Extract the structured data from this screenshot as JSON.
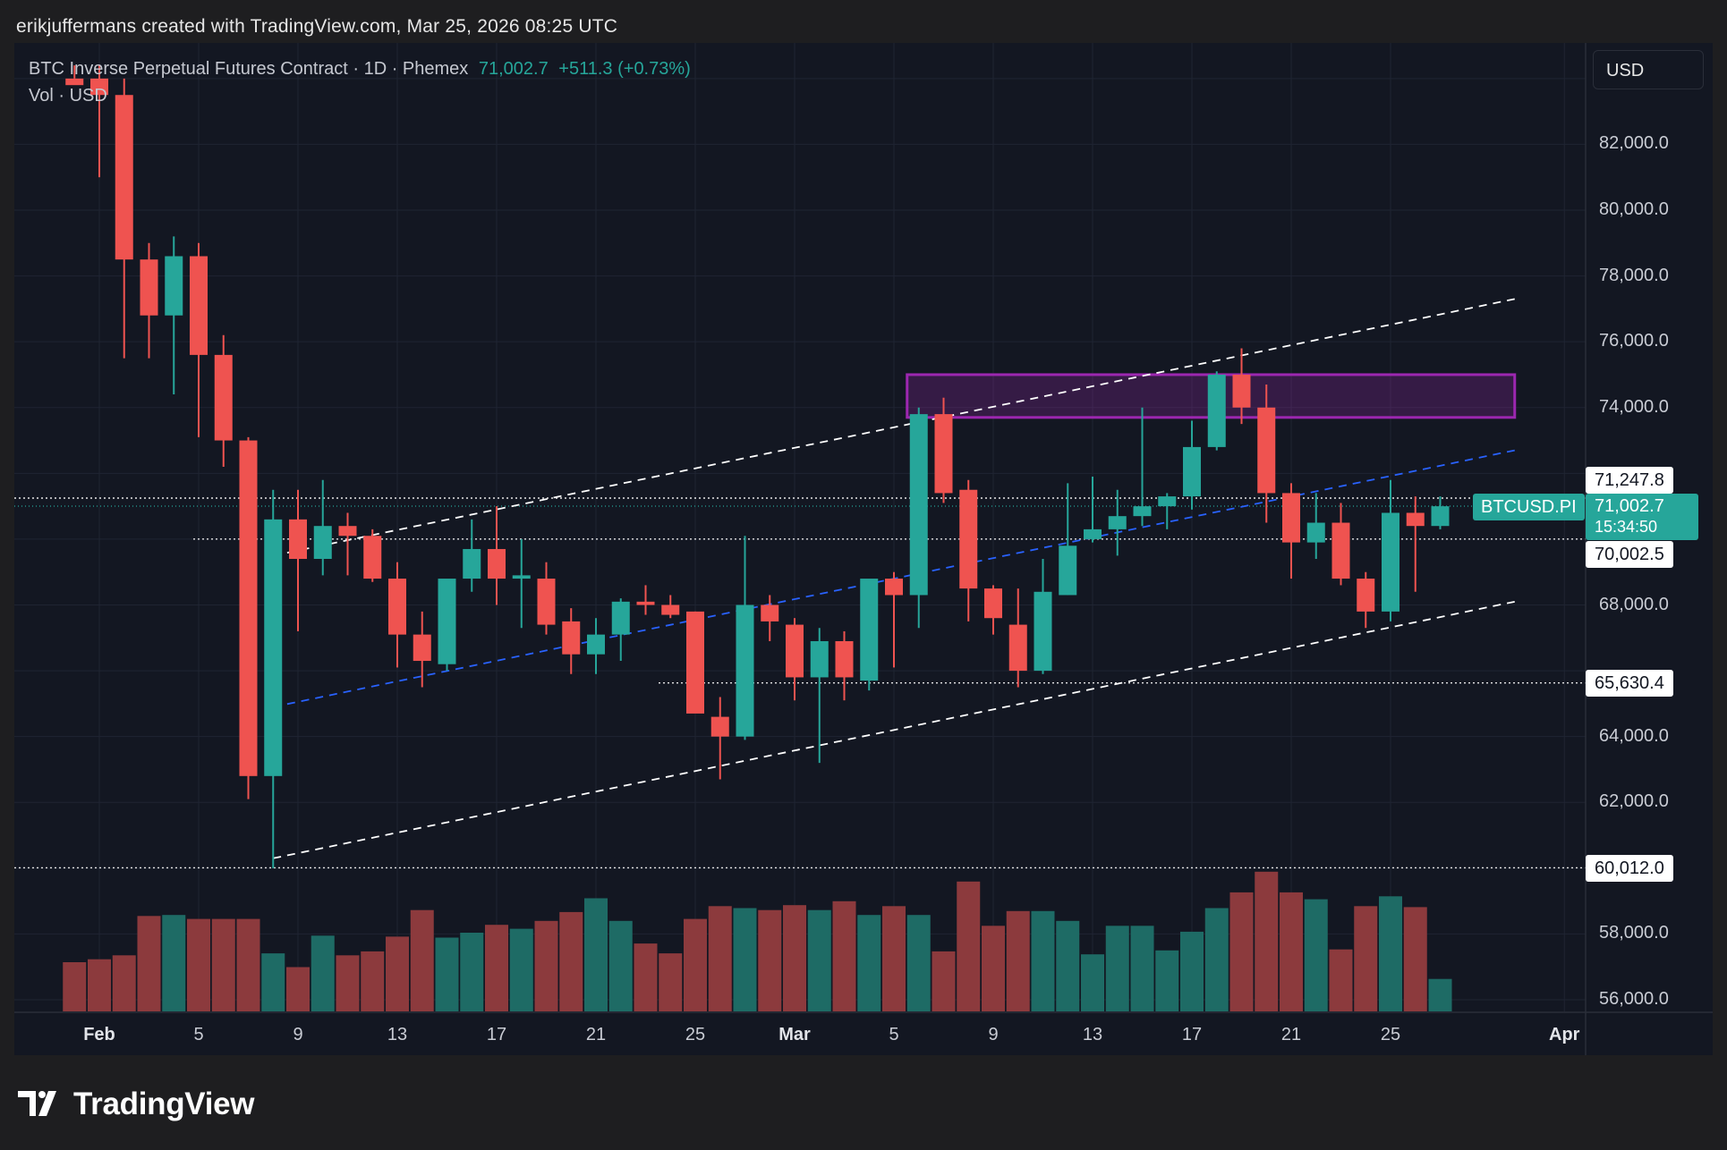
{
  "header": {
    "attribution": "erikjuffermans created with TradingView.com, Mar 25, 2026 08:25 UTC"
  },
  "legend": {
    "title": "BTC Inverse Perpetual Futures Contract · 1D · Phemex",
    "last": "71,002.7",
    "change": "+511.3 (+0.73%)",
    "volume_label": "Vol · USD"
  },
  "currency_button": "USD",
  "symbol_tag": "BTCUSD.PI",
  "last_price_label": "71,002.7",
  "countdown": "15:34:50",
  "price_labels": [
    "71,247.8",
    "70,002.5",
    "65,630.4",
    "60,012.0"
  ],
  "logo": {
    "text": "TradingView"
  },
  "colors": {
    "up": "#26a69a",
    "down": "#ef5350",
    "vol_up": "#1e6b65",
    "vol_down": "#8c3a3d",
    "zone": "#9c27b0",
    "channel": "#ffffff",
    "midline": "#2962ff",
    "background": "#131722"
  },
  "chart_data": {
    "type": "candlestick",
    "title": "BTC Inverse Perpetual Futures Contract · 1D · Phemex",
    "interval": "1D",
    "y_ticks": [
      "82,000.0",
      "80,000.0",
      "78,000.0",
      "76,000.0",
      "74,000.0",
      "68,000.0",
      "64,000.0",
      "62,000.0",
      "58,000.0",
      "56,000.0"
    ],
    "y_range": [
      55700,
      84400
    ],
    "x_ticks": [
      {
        "label": "Feb",
        "date": "2026-02-01",
        "bold": true
      },
      {
        "label": "5",
        "date": "2026-02-05"
      },
      {
        "label": "9",
        "date": "2026-02-09"
      },
      {
        "label": "13",
        "date": "2026-02-13"
      },
      {
        "label": "17",
        "date": "2026-02-17"
      },
      {
        "label": "21",
        "date": "2026-02-21"
      },
      {
        "label": "25",
        "date": "2026-02-25"
      },
      {
        "label": "Mar",
        "date": "2026-03-01",
        "bold": true
      },
      {
        "label": "5",
        "date": "2026-03-05"
      },
      {
        "label": "9",
        "date": "2026-03-09"
      },
      {
        "label": "13",
        "date": "2026-03-13"
      },
      {
        "label": "17",
        "date": "2026-03-17"
      },
      {
        "label": "21",
        "date": "2026-03-21"
      },
      {
        "label": "25",
        "date": "2026-03-25"
      },
      {
        "label": "Apr",
        "date": "2026-04-01",
        "bold": true
      }
    ],
    "candles": [
      {
        "date": "2026-01-31",
        "o": 84000,
        "h": 84400,
        "l": 84000,
        "c": 83800
      },
      {
        "date": "2026-02-01",
        "o": 84000,
        "h": 84400,
        "l": 81000,
        "c": 83500
      },
      {
        "date": "2026-02-02",
        "o": 83500,
        "h": 84000,
        "l": 75500,
        "c": 78500
      },
      {
        "date": "2026-02-03",
        "o": 78500,
        "h": 79000,
        "l": 75500,
        "c": 76800
      },
      {
        "date": "2026-02-04",
        "o": 76800,
        "h": 79200,
        "l": 74400,
        "c": 78600
      },
      {
        "date": "2026-02-05",
        "o": 78600,
        "h": 79000,
        "l": 73100,
        "c": 75600
      },
      {
        "date": "2026-02-06",
        "o": 75600,
        "h": 76200,
        "l": 72200,
        "c": 73000
      },
      {
        "date": "2026-02-07",
        "o": 73000,
        "h": 73100,
        "l": 62100,
        "c": 62800
      },
      {
        "date": "2026-02-08",
        "o": 62800,
        "h": 71500,
        "l": 60000,
        "c": 70600
      },
      {
        "date": "2026-02-09",
        "o": 70600,
        "h": 71500,
        "l": 67200,
        "c": 69400
      },
      {
        "date": "2026-02-10",
        "o": 69400,
        "h": 71800,
        "l": 68900,
        "c": 70400
      },
      {
        "date": "2026-02-11",
        "o": 70400,
        "h": 70800,
        "l": 68900,
        "c": 70100
      },
      {
        "date": "2026-02-12",
        "o": 70100,
        "h": 70300,
        "l": 68700,
        "c": 68800
      },
      {
        "date": "2026-02-13",
        "o": 68800,
        "h": 69300,
        "l": 66100,
        "c": 67100
      },
      {
        "date": "2026-02-14",
        "o": 67100,
        "h": 67800,
        "l": 65500,
        "c": 66300
      },
      {
        "date": "2026-02-15",
        "o": 66200,
        "h": 68700,
        "l": 66000,
        "c": 68800
      },
      {
        "date": "2026-02-16",
        "o": 68800,
        "h": 70600,
        "l": 68400,
        "c": 69700
      },
      {
        "date": "2026-02-17",
        "o": 69700,
        "h": 71000,
        "l": 68000,
        "c": 68800
      },
      {
        "date": "2026-02-18",
        "o": 68800,
        "h": 70000,
        "l": 67300,
        "c": 68900
      },
      {
        "date": "2026-02-19",
        "o": 68800,
        "h": 69300,
        "l": 67100,
        "c": 67400
      },
      {
        "date": "2026-02-20",
        "o": 67500,
        "h": 67900,
        "l": 65900,
        "c": 66500
      },
      {
        "date": "2026-02-21",
        "o": 66500,
        "h": 67600,
        "l": 65900,
        "c": 67100
      },
      {
        "date": "2026-02-22",
        "o": 67100,
        "h": 68200,
        "l": 66300,
        "c": 68100
      },
      {
        "date": "2026-02-23",
        "o": 68100,
        "h": 68600,
        "l": 67700,
        "c": 68000
      },
      {
        "date": "2026-02-24",
        "o": 68000,
        "h": 68300,
        "l": 67600,
        "c": 67700
      },
      {
        "date": "2026-02-25",
        "o": 67800,
        "h": 67800,
        "l": 64800,
        "c": 64700
      },
      {
        "date": "2026-02-26",
        "o": 64600,
        "h": 65200,
        "l": 62700,
        "c": 64000
      },
      {
        "date": "2026-02-27",
        "o": 64000,
        "h": 70100,
        "l": 63900,
        "c": 68000
      },
      {
        "date": "2026-02-28",
        "o": 68000,
        "h": 68300,
        "l": 66900,
        "c": 67500
      },
      {
        "date": "2026-03-01",
        "o": 67400,
        "h": 67600,
        "l": 65100,
        "c": 65800
      },
      {
        "date": "2026-03-02",
        "o": 65800,
        "h": 67300,
        "l": 63200,
        "c": 66900
      },
      {
        "date": "2026-03-03",
        "o": 66900,
        "h": 67200,
        "l": 65100,
        "c": 65800
      },
      {
        "date": "2026-03-04",
        "o": 65700,
        "h": 68700,
        "l": 65400,
        "c": 68800
      },
      {
        "date": "2026-03-05",
        "o": 68800,
        "h": 69000,
        "l": 66100,
        "c": 68300
      },
      {
        "date": "2026-03-06",
        "o": 68300,
        "h": 74000,
        "l": 67300,
        "c": 73800
      },
      {
        "date": "2026-03-07",
        "o": 73800,
        "h": 74300,
        "l": 71100,
        "c": 71400
      },
      {
        "date": "2026-03-08",
        "o": 71500,
        "h": 71800,
        "l": 67500,
        "c": 68500
      },
      {
        "date": "2026-03-09",
        "o": 68500,
        "h": 68600,
        "l": 67100,
        "c": 67600
      },
      {
        "date": "2026-03-10",
        "o": 67400,
        "h": 68500,
        "l": 65500,
        "c": 66000
      },
      {
        "date": "2026-03-11",
        "o": 66000,
        "h": 69400,
        "l": 65900,
        "c": 68400
      },
      {
        "date": "2026-03-12",
        "o": 68300,
        "h": 71700,
        "l": 68300,
        "c": 69800
      },
      {
        "date": "2026-03-13",
        "o": 70000,
        "h": 71900,
        "l": 69900,
        "c": 70300
      },
      {
        "date": "2026-03-14",
        "o": 70300,
        "h": 71500,
        "l": 69500,
        "c": 70700
      },
      {
        "date": "2026-03-15",
        "o": 70700,
        "h": 74000,
        "l": 70400,
        "c": 71000
      },
      {
        "date": "2026-03-16",
        "o": 71000,
        "h": 71400,
        "l": 70300,
        "c": 71300
      },
      {
        "date": "2026-03-17",
        "o": 71300,
        "h": 73600,
        "l": 70900,
        "c": 72800
      },
      {
        "date": "2026-03-18",
        "o": 72800,
        "h": 75100,
        "l": 72700,
        "c": 75000
      },
      {
        "date": "2026-03-19",
        "o": 75000,
        "h": 75800,
        "l": 73500,
        "c": 74000
      },
      {
        "date": "2026-03-20",
        "o": 74000,
        "h": 74700,
        "l": 70500,
        "c": 71400
      },
      {
        "date": "2026-03-21",
        "o": 71400,
        "h": 71700,
        "l": 68800,
        "c": 69900
      },
      {
        "date": "2026-03-22",
        "o": 69900,
        "h": 71400,
        "l": 69400,
        "c": 70500
      },
      {
        "date": "2026-03-23",
        "o": 70500,
        "h": 71100,
        "l": 68600,
        "c": 68800
      },
      {
        "date": "2026-03-24",
        "o": 68800,
        "h": 69000,
        "l": 67300,
        "c": 67800
      },
      {
        "date": "2026-03-25",
        "o": 67800,
        "h": 71800,
        "l": 67500,
        "c": 70800
      },
      {
        "date": "2026-03-26",
        "o": 70800,
        "h": 71300,
        "l": 68400,
        "c": 70400
      },
      {
        "date": "2026-03-27",
        "o": 70400,
        "h": 71300,
        "l": 70300,
        "c": 71000
      }
    ],
    "volume": [
      0.5,
      0.53,
      0.57,
      0.97,
      0.98,
      0.94,
      0.94,
      0.94,
      0.59,
      0.45,
      0.77,
      0.57,
      0.61,
      0.76,
      1.03,
      0.75,
      0.8,
      0.88,
      0.84,
      0.92,
      1.01,
      1.15,
      0.92,
      0.69,
      0.59,
      0.94,
      1.07,
      1.05,
      1.03,
      1.08,
      1.03,
      1.12,
      0.98,
      1.07,
      0.98,
      0.61,
      1.32,
      0.87,
      1.02,
      1.02,
      0.92,
      0.58,
      0.87,
      0.87,
      0.62,
      0.81,
      1.05,
      1.21,
      1.42,
      1.21,
      1.14,
      0.63,
      1.07,
      1.17,
      1.06,
      0.33
    ],
    "horizontal_levels": [
      71247.8,
      70002.5,
      65630.4,
      60012.0
    ],
    "last_price": 71002.7,
    "zone": {
      "from": "2026-03-06",
      "to": "2026-03-30",
      "top": 75000,
      "bottom": 73700
    },
    "channel": {
      "upper": [
        {
          "date": "2026-02-08",
          "v": 69500
        },
        {
          "date": "2026-03-30",
          "v": 77300
        }
      ],
      "lower": [
        {
          "date": "2026-02-08",
          "v": 60300
        },
        {
          "date": "2026-03-30",
          "v": 68100
        }
      ],
      "mid": [
        {
          "date": "2026-02-08",
          "v": 64900
        },
        {
          "date": "2026-03-30",
          "v": 72700
        }
      ]
    }
  }
}
